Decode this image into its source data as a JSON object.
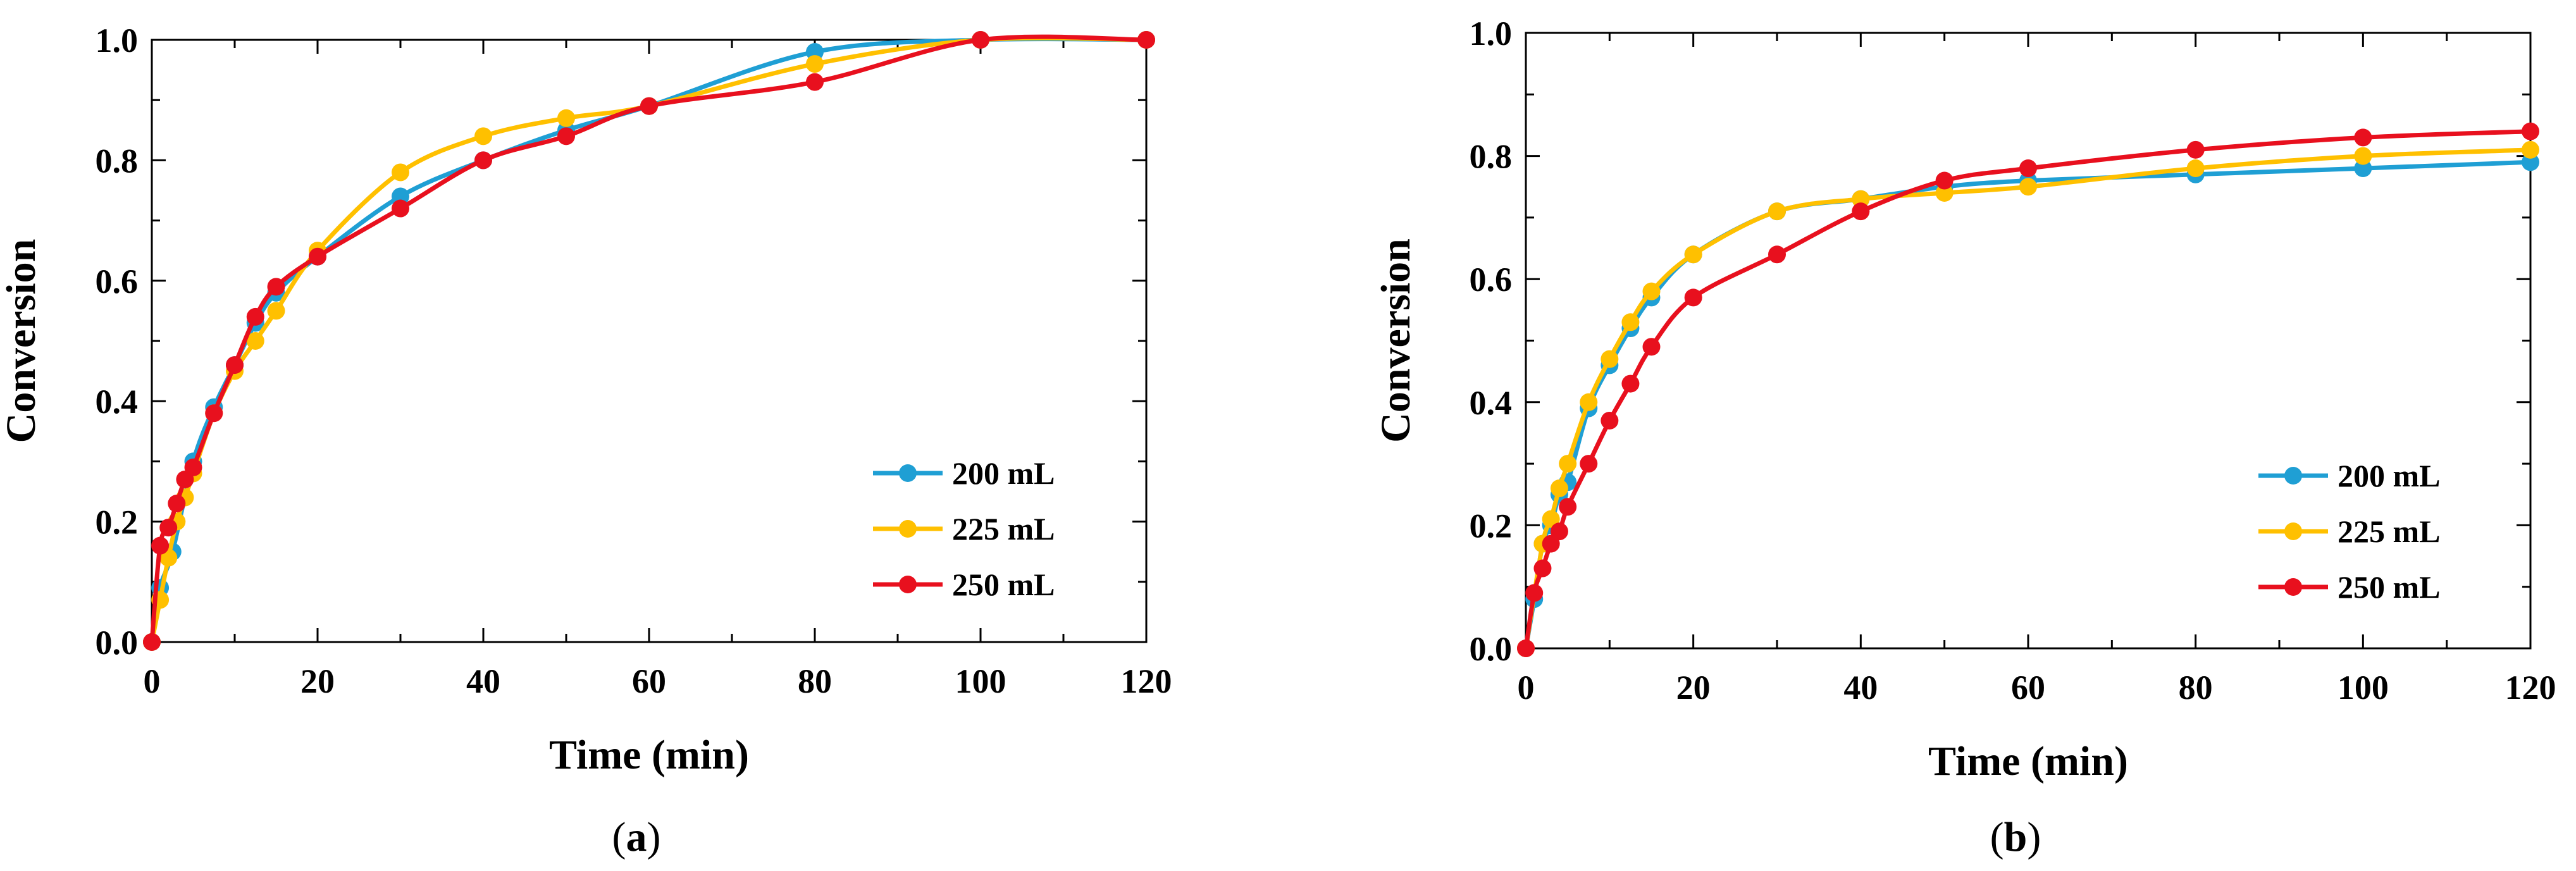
{
  "colors": {
    "200 mL": "#1f9fd4",
    "225 mL": "#ffc000",
    "250 mL": "#e8101e"
  },
  "chart_data": [
    {
      "type": "line",
      "caption": "(a)",
      "xlabel": "Time (min)",
      "ylabel": "Conversion",
      "xlim": [
        0,
        120
      ],
      "ylim": [
        0,
        1.0
      ],
      "xticks": [
        "0",
        "20",
        "40",
        "60",
        "80",
        "100",
        "120"
      ],
      "yticks": [
        "0.0",
        "0.2",
        "0.4",
        "0.6",
        "0.8",
        "1.0"
      ],
      "legend_position": "lower-right",
      "series": [
        {
          "name": "200 mL",
          "x": [
            0,
            1,
            2.5,
            5,
            7.5,
            10,
            12.5,
            15,
            20,
            30,
            40,
            50,
            60,
            80,
            100,
            120
          ],
          "y": [
            0,
            0.09,
            0.15,
            0.3,
            0.39,
            0.46,
            0.53,
            0.58,
            0.64,
            0.74,
            0.8,
            0.85,
            0.89,
            0.98,
            1.0,
            1.0
          ]
        },
        {
          "name": "225 mL",
          "x": [
            0,
            1,
            2,
            3,
            4,
            5,
            7.5,
            10,
            12.5,
            15,
            20,
            30,
            40,
            50,
            60,
            80,
            100,
            120
          ],
          "y": [
            0,
            0.07,
            0.14,
            0.2,
            0.24,
            0.28,
            0.38,
            0.45,
            0.5,
            0.55,
            0.65,
            0.78,
            0.84,
            0.87,
            0.89,
            0.96,
            1.0,
            1.0
          ]
        },
        {
          "name": "250 mL",
          "x": [
            0,
            1,
            2,
            3,
            4,
            5,
            7.5,
            10,
            12.5,
            15,
            20,
            30,
            40,
            50,
            60,
            80,
            100,
            120
          ],
          "y": [
            0,
            0.16,
            0.19,
            0.23,
            0.27,
            0.29,
            0.38,
            0.46,
            0.54,
            0.59,
            0.64,
            0.72,
            0.8,
            0.84,
            0.89,
            0.93,
            1.0,
            1.0
          ]
        }
      ]
    },
    {
      "type": "line",
      "caption": "(b)",
      "xlabel": "Time (min)",
      "ylabel": "Conversion",
      "xlim": [
        0,
        120
      ],
      "ylim": [
        0,
        1.0
      ],
      "xticks": [
        "0",
        "20",
        "40",
        "60",
        "80",
        "100",
        "120"
      ],
      "yticks": [
        "0.0",
        "0.2",
        "0.4",
        "0.6",
        "0.8",
        "1.0"
      ],
      "legend_position": "lower-right",
      "series": [
        {
          "name": "200 mL",
          "x": [
            0,
            1,
            2,
            3,
            4,
            5,
            7.5,
            10,
            12.5,
            15,
            20,
            30,
            40,
            50,
            60,
            80,
            100,
            120
          ],
          "y": [
            0,
            0.08,
            0.17,
            0.2,
            0.25,
            0.27,
            0.39,
            0.46,
            0.52,
            0.57,
            0.64,
            0.71,
            0.73,
            0.75,
            0.76,
            0.77,
            0.78,
            0.79
          ]
        },
        {
          "name": "225 mL",
          "x": [
            0,
            2,
            3,
            4,
            5,
            7.5,
            10,
            12.5,
            15,
            20,
            30,
            40,
            50,
            60,
            80,
            100,
            120
          ],
          "y": [
            0,
            0.17,
            0.21,
            0.26,
            0.3,
            0.4,
            0.47,
            0.53,
            0.58,
            0.64,
            0.71,
            0.73,
            0.74,
            0.75,
            0.78,
            0.8,
            0.81
          ]
        },
        {
          "name": "250 mL",
          "x": [
            0,
            1,
            2,
            3,
            4,
            5,
            7.5,
            10,
            12.5,
            15,
            20,
            30,
            40,
            50,
            60,
            80,
            100,
            120
          ],
          "y": [
            0,
            0.09,
            0.13,
            0.17,
            0.19,
            0.23,
            0.3,
            0.37,
            0.43,
            0.49,
            0.57,
            0.64,
            0.71,
            0.76,
            0.78,
            0.81,
            0.83,
            0.84
          ]
        }
      ]
    }
  ]
}
